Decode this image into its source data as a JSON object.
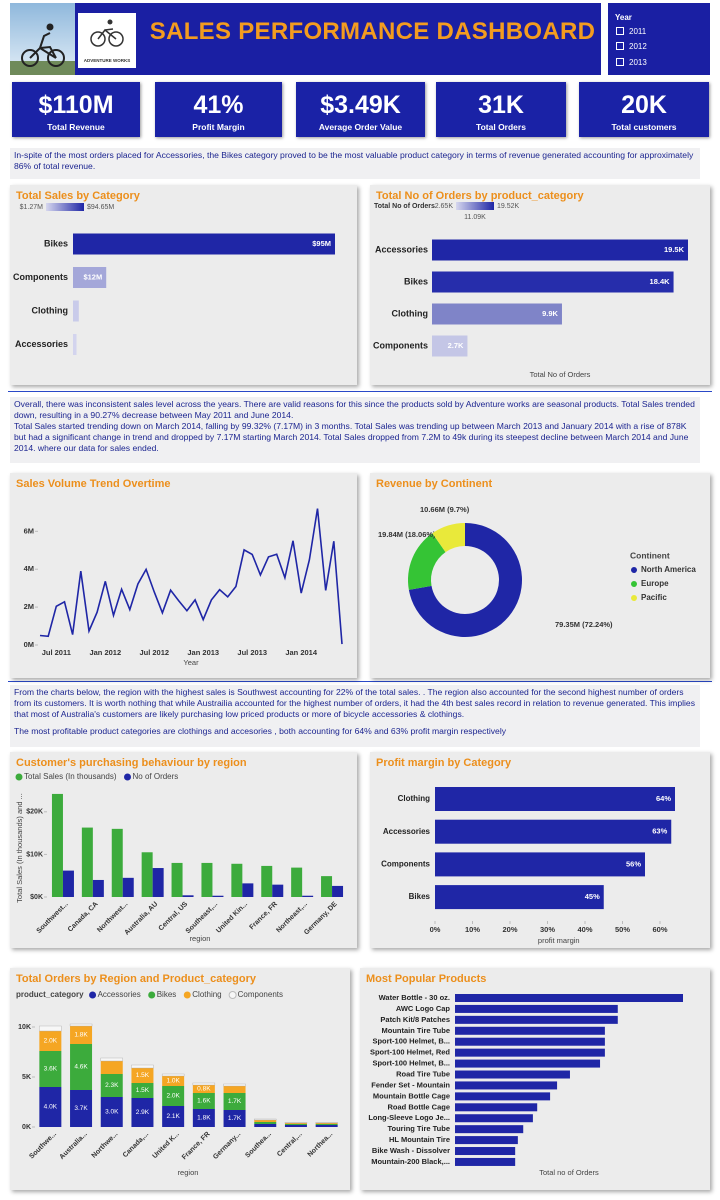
{
  "header": {
    "title": "SALES PERFORMANCE DASHBOARD",
    "logo_text": "ADVENTURE WORKS",
    "slicer": {
      "title": "Year",
      "options": [
        "2011",
        "2012",
        "2013"
      ]
    }
  },
  "kpis": [
    {
      "value": "$110M",
      "label": "Total Revenue"
    },
    {
      "value": "41%",
      "label": "Profit Margin"
    },
    {
      "value": "$3.49K",
      "label": "Average Order Value"
    },
    {
      "value": "31K",
      "label": "Total Orders"
    },
    {
      "value": "20K",
      "label": "Total customers"
    }
  ],
  "notes": [
    [
      "In-spite of the most orders placed for Accessories, the Bikes category proved to be the most valuable product category in terms of revenue generated accounting for approximately 86% of total revenue."
    ],
    [
      "Overall, there was inconsistent sales level across the years. There are valid reasons for this since the products sold by Adventure works are seasonal products.  Total Sales trended down, resulting in a 90.27% decrease between May 2011 and June 2014.",
      "Total Sales started trending down on March 2014, falling by 99.32% (7.17M) in 3 months. Total Sales was trending up between March 2013 and January 2014 with a rise of 878K but had a significant change in trend and dropped by 7.17M starting March 2014. Total Sales dropped from 7.2M to 49k during its steepest decline between March 2014 and June 2014. where our data for sales ended."
    ],
    [
      "From the charts below, the region with the highest sales is Southwest  accounting for 22% of the total sales. . The region also accounted for the second highest number of orders from its customers. It is worth nothing that while Austrailia accounted for the highest number of orders, it had the 4th best sales record in relation to revenue generated. This implies that most of Australia's customers are likely purchasing low priced products or more of bicycle accessories & clothings.",
      "The most profitable product categories are clothings and accesories , both accounting for 64% and 63% profit margin respectively"
    ]
  ],
  "chart_data": [
    {
      "type": "bar",
      "orientation": "horizontal",
      "title": "Total Sales by Category",
      "categories": [
        "Bikes",
        "Components",
        "Clothing",
        "Accessories"
      ],
      "values": [
        94.65,
        12,
        2.1,
        1.27
      ],
      "value_labels": [
        "$95M",
        "$12M",
        null,
        null
      ],
      "colors": [
        "#1f26a6",
        "#a4a7d9",
        "#c9cbea",
        "#d3d4ee"
      ],
      "color_scale": {
        "labels": [
          "$1.27M",
          "$94.65M"
        ],
        "colors": [
          "#d6d7ee",
          "#1f26a6"
        ]
      }
    },
    {
      "type": "bar",
      "orientation": "horizontal",
      "title": "Total No of Orders by product_category",
      "categories": [
        "Accessories",
        "Bikes",
        "Clothing",
        "Components"
      ],
      "values": [
        19.5,
        18.4,
        9.9,
        2.7
      ],
      "value_labels": [
        "19.5K",
        "18.4K",
        "9.9K",
        "2.7K"
      ],
      "colors": [
        "#1f26a6",
        "#262dab",
        "#7f84c8",
        "#c4c6e6"
      ],
      "color_scale": {
        "title": "Total No of Orders",
        "labels": [
          "2.65K",
          "19.52K",
          "11.09K"
        ],
        "colors": [
          "#d6d7ee",
          "#1f26a6"
        ]
      },
      "xlabel": "Total No of Orders"
    },
    {
      "type": "line",
      "title": "Sales Volume Trend Overtime",
      "color": "#1f26a6",
      "x": [
        "May 2011",
        "Jun 2011",
        "Jul 2011",
        "Aug 2011",
        "Sep 2011",
        "Oct 2011",
        "Nov 2011",
        "Dec 2011",
        "Jan 2012",
        "Feb 2012",
        "Mar 2012",
        "Apr 2012",
        "May 2012",
        "Jun 2012",
        "Jul 2012",
        "Aug 2012",
        "Sep 2012",
        "Oct 2012",
        "Nov 2012",
        "Dec 2012",
        "Jan 2013",
        "Feb 2013",
        "Mar 2013",
        "Apr 2013",
        "May 2013",
        "Jun 2013",
        "Jul 2013",
        "Aug 2013",
        "Sep 2013",
        "Oct 2013",
        "Nov 2013",
        "Dec 2013",
        "Jan 2014",
        "Feb 2014",
        "Mar 2014",
        "Apr 2014",
        "May 2014",
        "Jun 2014"
      ],
      "values": [
        0.5,
        0.46,
        2.04,
        2.28,
        0.55,
        3.9,
        0.74,
        1.73,
        3.36,
        1.56,
        2.94,
        1.87,
        3.22,
        3.99,
        2.79,
        1.7,
        2.89,
        2.33,
        1.81,
        2.38,
        1.34,
        2.38,
        2.92,
        2.54,
        3.09,
        5.02,
        4.78,
        3.7,
        4.65,
        4.79,
        3.55,
        5.5,
        2.74,
        4.5,
        7.2,
        2.88,
        5.48,
        0.05
      ],
      "xticks": [
        "Jul 2011",
        "Jan 2012",
        "Jul 2012",
        "Jan 2013",
        "Jul 2013",
        "Jan 2014"
      ],
      "ylim": [
        0,
        7.6
      ],
      "yticks": [
        {
          "value": 0,
          "label": "0M"
        },
        {
          "value": 2,
          "label": "2M"
        },
        {
          "value": 4,
          "label": "4M"
        },
        {
          "value": 6,
          "label": "6M"
        }
      ],
      "xlabel": "Year"
    },
    {
      "type": "pie",
      "donut": true,
      "title": "Revenue by Continent",
      "legend_title": "Continent",
      "categories": [
        "North America",
        "Europe",
        "Pacific"
      ],
      "values": [
        79.35,
        19.84,
        10.66
      ],
      "value_labels": [
        "79.35M (72.24%)",
        "19.84M (18.06%)",
        "10.66M (9.7%)"
      ],
      "colors": [
        "#1f26a6",
        "#35c435",
        "#e9e93a"
      ]
    },
    {
      "type": "bar",
      "title": "Customer's purchasing behaviour by region",
      "categories": [
        "Southwest...",
        "Canada, CA",
        "Northwest...",
        "Australia, AU",
        "Central, US",
        "Southeast,...",
        "United Kin...",
        "France, FR",
        "Northeast,...",
        "Germany, DE"
      ],
      "series": [
        {
          "name": "Total Sales (In thousands)",
          "color": "#3cab3c",
          "values": [
            24.2,
            16.3,
            16.0,
            10.5,
            8.0,
            8.0,
            7.8,
            7.3,
            6.9,
            4.9
          ]
        },
        {
          "name": "No of Orders",
          "color": "#1f26a6",
          "values": [
            6.2,
            4.0,
            4.5,
            6.8,
            0.4,
            0.3,
            3.2,
            2.9,
            0.3,
            2.6
          ]
        }
      ],
      "ylim": [
        0,
        27
      ],
      "yticks": [
        {
          "value": 0,
          "label": "$0K"
        },
        {
          "value": 10,
          "label": "$10K"
        },
        {
          "value": 20,
          "label": "$20K"
        }
      ],
      "ylabel": "Total Sales (In thousands) and ...",
      "xlabel": "region"
    },
    {
      "type": "bar",
      "orientation": "horizontal",
      "title": "Profit margin by Category",
      "categories": [
        "Clothing",
        "Accessories",
        "Components",
        "Bikes"
      ],
      "values": [
        64,
        63,
        56,
        45
      ],
      "value_labels": [
        "64%",
        "63%",
        "56%",
        "45%"
      ],
      "color": "#1f26a6",
      "xlim": [
        0,
        66
      ],
      "xticks": [
        {
          "value": 0,
          "label": "0%"
        },
        {
          "value": 10,
          "label": "10%"
        },
        {
          "value": 20,
          "label": "20%"
        },
        {
          "value": 30,
          "label": "30%"
        },
        {
          "value": 40,
          "label": "40%"
        },
        {
          "value": 50,
          "label": "50%"
        },
        {
          "value": 60,
          "label": "60%"
        }
      ],
      "xlabel": "profit margin"
    },
    {
      "type": "bar",
      "stacked": true,
      "title": "Total Orders by Region and Product_category",
      "legend_title": "product_category",
      "categories": [
        "Southwe...",
        "Australia...",
        "Northwe...",
        "Canada,...",
        "United K...",
        "France, FR",
        "Germany...",
        "Southea...",
        "Central,...",
        "Northea..."
      ],
      "series": [
        {
          "name": "Accessories",
          "color": "#1f26a6",
          "values": [
            4.0,
            3.7,
            3.0,
            2.9,
            2.1,
            1.8,
            1.7,
            0.3,
            0.2,
            0.2
          ],
          "value_labels": [
            "4.0K",
            "3.7K",
            "3.0K",
            "2.9K",
            "2.1K",
            "1.8K",
            "1.7K",
            null,
            null,
            null
          ]
        },
        {
          "name": "Bikes",
          "color": "#3cab3c",
          "values": [
            3.6,
            4.6,
            2.3,
            1.5,
            2.0,
            1.6,
            1.7,
            0.2,
            0.1,
            0.1
          ],
          "value_labels": [
            "3.6K",
            "4.6K",
            "2.3K",
            "1.5K",
            "2.0K",
            "1.6K",
            "1.7K",
            null,
            null,
            null
          ]
        },
        {
          "name": "Clothing",
          "color": "#f5a623",
          "values": [
            2.0,
            1.8,
            1.3,
            1.5,
            1.0,
            0.8,
            0.7,
            0.2,
            0.1,
            0.1
          ],
          "value_labels": [
            "2.0K",
            "1.8K",
            null,
            "1.5K",
            "1.0K",
            "0.8K",
            null,
            null,
            null,
            null
          ]
        },
        {
          "name": "Components",
          "color": "#f7f7f7",
          "values": [
            0.5,
            0.2,
            0.3,
            0.3,
            0.2,
            0.2,
            0.2,
            0.1,
            0.05,
            0.05
          ]
        }
      ],
      "ylim": [
        0,
        11
      ],
      "yticks": [
        {
          "value": 0,
          "label": "0K"
        },
        {
          "value": 5,
          "label": "5K"
        },
        {
          "value": 10,
          "label": "10K"
        }
      ],
      "xlabel": "region"
    },
    {
      "type": "bar",
      "orientation": "horizontal",
      "title": "Most Popular Products",
      "categories": [
        "Water Bottle - 30 oz.",
        "AWC Logo Cap",
        "Patch Kit/8 Patches",
        "Mountain Tire Tube",
        "Sport-100 Helmet, B...",
        "Sport-100 Helmet, Red",
        "Sport-100 Helmet, B...",
        "Road Tire Tube",
        "Fender Set - Mountain",
        "Mountain Bottle Cage",
        "Road Bottle Cage",
        "Long-Sleeve Logo Je...",
        "Touring Tire Tube",
        "HL Mountain Tire",
        "Bike Wash - Dissolver",
        "Mountain-200 Black,..."
      ],
      "values": [
        4244,
        3030,
        3030,
        2790,
        2790,
        2790,
        2700,
        2140,
        1900,
        1770,
        1530,
        1450,
        1270,
        1170,
        1120,
        1120
      ],
      "color": "#1f26a6",
      "xlabel": "Total no of Orders"
    }
  ]
}
